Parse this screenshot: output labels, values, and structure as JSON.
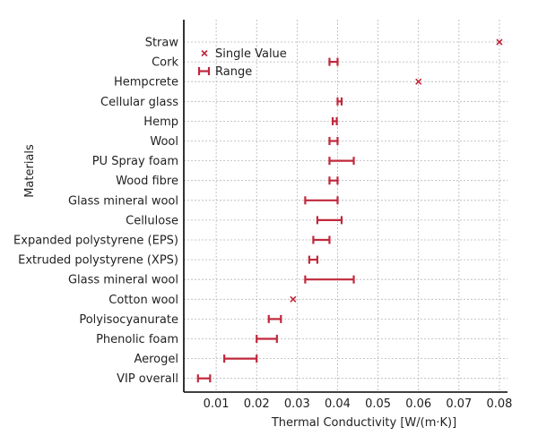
{
  "chart_data": {
    "type": "scatter",
    "orientation": "horizontal",
    "xlabel": "Thermal Conductivity [W/(m·K)]",
    "ylabel": "Materials",
    "xlim": [
      0.002,
      0.082
    ],
    "xticks": [
      0.01,
      0.02,
      0.03,
      0.04,
      0.05,
      0.06,
      0.07,
      0.08
    ],
    "xtick_labels": [
      "0.01",
      "0.02",
      "0.03",
      "0.04",
      "0.05",
      "0.06",
      "0.07",
      "0.08"
    ],
    "grid": true,
    "legend_position": "top-left",
    "legend": [
      {
        "label": "Single Value",
        "marker": "x"
      },
      {
        "label": "Range",
        "marker": "errorbar"
      }
    ],
    "categories": [
      "Straw",
      "Cork",
      "Hempcrete",
      "Cellular glass",
      "Hemp",
      "Wool",
      "PU Spray foam",
      "Wood fibre",
      "Glass mineral wool",
      "Cellulose",
      "Expanded polystyrene (EPS)",
      "Extruded polystyrene (XPS)",
      "Glass mineral wool",
      "Cotton wool",
      "Polyisocyanurate",
      "Phenolic foam",
      "Aerogel",
      "VIP overall"
    ],
    "points": [
      {
        "category": "Straw",
        "kind": "single",
        "value": 0.08
      },
      {
        "category": "Cork",
        "kind": "range",
        "min": 0.038,
        "max": 0.04
      },
      {
        "category": "Hempcrete",
        "kind": "single",
        "value": 0.06
      },
      {
        "category": "Cellular glass",
        "kind": "range",
        "min": 0.04,
        "max": 0.041
      },
      {
        "category": "Hemp",
        "kind": "range",
        "min": 0.0388,
        "max": 0.0398
      },
      {
        "category": "Wool",
        "kind": "range",
        "min": 0.038,
        "max": 0.04
      },
      {
        "category": "PU Spray foam",
        "kind": "range",
        "min": 0.038,
        "max": 0.044
      },
      {
        "category": "Wood fibre",
        "kind": "range",
        "min": 0.038,
        "max": 0.04
      },
      {
        "category": "Glass mineral wool",
        "kind": "range",
        "min": 0.032,
        "max": 0.04
      },
      {
        "category": "Cellulose",
        "kind": "range",
        "min": 0.035,
        "max": 0.041
      },
      {
        "category": "Expanded polystyrene (EPS)",
        "kind": "range",
        "min": 0.034,
        "max": 0.038
      },
      {
        "category": "Extruded polystyrene (XPS)",
        "kind": "range",
        "min": 0.033,
        "max": 0.035
      },
      {
        "category": "Glass mineral wool",
        "kind": "range",
        "min": 0.032,
        "max": 0.044
      },
      {
        "category": "Cotton wool",
        "kind": "single",
        "value": 0.029
      },
      {
        "category": "Polyisocyanurate",
        "kind": "range",
        "min": 0.023,
        "max": 0.026
      },
      {
        "category": "Phenolic foam",
        "kind": "range",
        "min": 0.02,
        "max": 0.025
      },
      {
        "category": "Aerogel",
        "kind": "range",
        "min": 0.012,
        "max": 0.02
      },
      {
        "category": "VIP overall",
        "kind": "range",
        "min": 0.0055,
        "max": 0.0085
      }
    ],
    "colors": {
      "marker": "#c0283c",
      "axis": "#000000",
      "grid": "#b5b5b5",
      "text": "#222222"
    }
  }
}
